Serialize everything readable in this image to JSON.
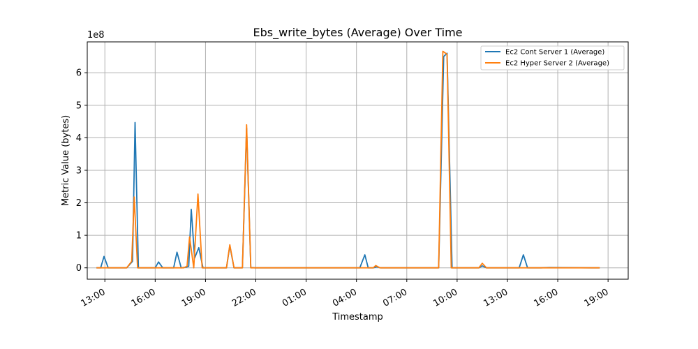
{
  "chart_data": {
    "type": "line",
    "title": "Ebs_write_bytes (Average) Over Time",
    "xlabel": "Timestamp",
    "ylabel": "Metric Value (bytes)",
    "y_multiplier_label": "1e8",
    "y_multiplier": 100000000,
    "ylim": [
      -0.35,
      6.95
    ],
    "yticks": [
      0,
      1,
      2,
      3,
      4,
      5,
      6
    ],
    "ytick_labels": [
      "0",
      "1",
      "2",
      "3",
      "4",
      "5",
      "6"
    ],
    "x_unit": "hours",
    "xlim": [
      11.95,
      44.2
    ],
    "xticks": [
      13,
      16,
      19,
      22,
      25,
      28,
      31,
      34,
      37,
      40,
      43
    ],
    "xtick_labels": [
      "13:00",
      "16:00",
      "19:00",
      "22:00",
      "01:00",
      "04:00",
      "07:00",
      "10:00",
      "13:00",
      "16:00",
      "19:00"
    ],
    "grid": true,
    "legend_position": "upper-right",
    "colors": {
      "Ec2 Cont Server 1 (Average)": "#1f77b4",
      "Ec2 Hyper Server 2 (Average)": "#ff7f0e"
    },
    "series": [
      {
        "name": "Ec2 Cont Server 1 (Average)",
        "color": "#1f77b4",
        "x": [
          12.5,
          12.75,
          12.95,
          13.2,
          14.3,
          14.65,
          14.8,
          15.0,
          16.0,
          16.2,
          16.45,
          17.1,
          17.3,
          17.55,
          17.85,
          18.0,
          18.15,
          18.35,
          18.6,
          18.85,
          20.25,
          20.45,
          20.7,
          21.2,
          21.45,
          21.7,
          21.95,
          28.2,
          28.5,
          28.7,
          29.0,
          29.2,
          29.45,
          32.9,
          33.2,
          33.4,
          33.7,
          35.3,
          35.5,
          35.75,
          37.7,
          37.95,
          38.2,
          39.0,
          39.5,
          42.0,
          42.5
        ],
        "y": [
          0,
          0,
          0.35,
          0,
          0,
          0.2,
          4.47,
          0,
          0,
          0.18,
          0,
          0,
          0.48,
          0,
          0.02,
          0.05,
          1.8,
          0.3,
          0.62,
          0,
          0,
          0.68,
          0,
          0,
          4.3,
          0.01,
          0,
          0,
          0.4,
          0,
          0,
          0.03,
          0,
          0,
          6.5,
          6.6,
          0,
          0,
          0.06,
          0,
          0,
          0.4,
          0,
          0,
          0.01,
          0,
          0
        ]
      },
      {
        "name": "Ec2 Hyper Server 2 (Average)",
        "color": "#ff7f0e",
        "x": [
          12.5,
          14.3,
          14.6,
          14.75,
          14.95,
          17.7,
          17.9,
          18.05,
          18.3,
          18.55,
          18.8,
          20.25,
          20.45,
          20.7,
          21.2,
          21.45,
          21.7,
          21.95,
          29.0,
          29.15,
          29.4,
          32.9,
          33.15,
          33.4,
          33.65,
          35.3,
          35.5,
          35.75,
          42.5
        ],
        "y": [
          0,
          0,
          0.2,
          2.18,
          0,
          0,
          0.05,
          0.95,
          0,
          2.27,
          0,
          0,
          0.71,
          0,
          0,
          4.4,
          0,
          0,
          0,
          0.07,
          0,
          0,
          6.66,
          6.57,
          0,
          0,
          0.14,
          0,
          0
        ]
      }
    ]
  }
}
